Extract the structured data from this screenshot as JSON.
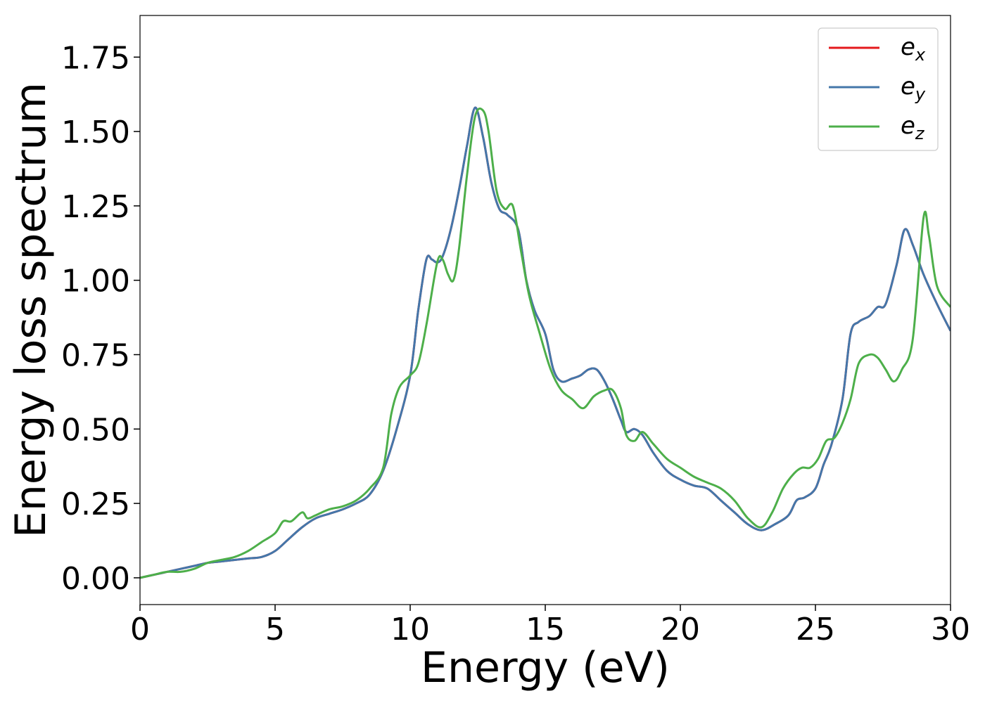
{
  "chart_data": {
    "type": "line",
    "title": "",
    "xlabel": "Energy (eV)",
    "ylabel": "Energy loss spectrum",
    "xlim": [
      0,
      30
    ],
    "ylim": [
      -0.09,
      1.89
    ],
    "xticks": [
      0,
      5,
      10,
      15,
      20,
      25,
      30
    ],
    "xtick_labels": [
      "0",
      "5",
      "10",
      "15",
      "20",
      "25",
      "30"
    ],
    "yticks": [
      0.0,
      0.25,
      0.5,
      0.75,
      1.0,
      1.25,
      1.5,
      1.75
    ],
    "ytick_labels": [
      "0.00",
      "0.25",
      "0.50",
      "0.75",
      "1.00",
      "1.25",
      "1.50",
      "1.75"
    ],
    "grid": false,
    "legend_position": "top-right",
    "series": [
      {
        "name": "e",
        "subscript": "x",
        "color": "#e41a1c",
        "x": [
          0,
          0.5,
          1,
          1.5,
          2,
          2.5,
          3,
          3.5,
          4,
          4.5,
          5,
          5.5,
          6,
          6.5,
          7,
          7.5,
          8,
          8.5,
          9,
          9.5,
          10,
          10.3,
          10.6,
          10.8,
          11,
          11.2,
          11.5,
          11.8,
          12.1,
          12.4,
          12.7,
          13,
          13.3,
          13.6,
          14,
          14.3,
          14.6,
          15,
          15.3,
          15.6,
          16,
          16.3,
          16.6,
          16.9,
          17.2,
          17.5,
          17.8,
          18,
          18.3,
          18.6,
          19,
          19.5,
          20,
          20.5,
          21,
          21.5,
          22,
          22.5,
          23,
          23.5,
          24,
          24.3,
          24.6,
          25,
          25.3,
          25.6,
          26,
          26.3,
          26.6,
          27,
          27.3,
          27.6,
          28,
          28.3,
          28.6,
          29,
          29.5,
          30
        ],
        "y": [
          0,
          0.01,
          0.02,
          0.03,
          0.04,
          0.05,
          0.055,
          0.06,
          0.065,
          0.07,
          0.09,
          0.13,
          0.17,
          0.2,
          0.215,
          0.23,
          0.25,
          0.28,
          0.36,
          0.5,
          0.68,
          0.9,
          1.07,
          1.07,
          1.06,
          1.08,
          1.17,
          1.3,
          1.45,
          1.58,
          1.48,
          1.33,
          1.24,
          1.22,
          1.17,
          1.0,
          0.9,
          0.82,
          0.7,
          0.66,
          0.67,
          0.68,
          0.7,
          0.7,
          0.66,
          0.6,
          0.53,
          0.49,
          0.5,
          0.48,
          0.42,
          0.36,
          0.33,
          0.31,
          0.3,
          0.26,
          0.22,
          0.18,
          0.16,
          0.18,
          0.21,
          0.26,
          0.27,
          0.3,
          0.38,
          0.45,
          0.6,
          0.82,
          0.86,
          0.88,
          0.91,
          0.92,
          1.05,
          1.17,
          1.12,
          1.02,
          0.92,
          0.83
        ]
      },
      {
        "name": "e",
        "subscript": "y",
        "color": "#4477aa",
        "x": [
          0,
          0.5,
          1,
          1.5,
          2,
          2.5,
          3,
          3.5,
          4,
          4.5,
          5,
          5.5,
          6,
          6.5,
          7,
          7.5,
          8,
          8.5,
          9,
          9.5,
          10,
          10.3,
          10.6,
          10.8,
          11,
          11.2,
          11.5,
          11.8,
          12.1,
          12.4,
          12.7,
          13,
          13.3,
          13.6,
          14,
          14.3,
          14.6,
          15,
          15.3,
          15.6,
          16,
          16.3,
          16.6,
          16.9,
          17.2,
          17.5,
          17.8,
          18,
          18.3,
          18.6,
          19,
          19.5,
          20,
          20.5,
          21,
          21.5,
          22,
          22.5,
          23,
          23.5,
          24,
          24.3,
          24.6,
          25,
          25.3,
          25.6,
          26,
          26.3,
          26.6,
          27,
          27.3,
          27.6,
          28,
          28.3,
          28.6,
          29,
          29.5,
          30
        ],
        "y": [
          0,
          0.01,
          0.02,
          0.03,
          0.04,
          0.05,
          0.055,
          0.06,
          0.065,
          0.07,
          0.09,
          0.13,
          0.17,
          0.2,
          0.215,
          0.23,
          0.25,
          0.28,
          0.36,
          0.5,
          0.68,
          0.9,
          1.07,
          1.07,
          1.06,
          1.08,
          1.17,
          1.3,
          1.45,
          1.58,
          1.48,
          1.33,
          1.24,
          1.22,
          1.17,
          1.0,
          0.9,
          0.82,
          0.7,
          0.66,
          0.67,
          0.68,
          0.7,
          0.7,
          0.66,
          0.6,
          0.53,
          0.49,
          0.5,
          0.48,
          0.42,
          0.36,
          0.33,
          0.31,
          0.3,
          0.26,
          0.22,
          0.18,
          0.16,
          0.18,
          0.21,
          0.26,
          0.27,
          0.3,
          0.38,
          0.45,
          0.6,
          0.82,
          0.86,
          0.88,
          0.91,
          0.92,
          1.05,
          1.17,
          1.12,
          1.02,
          0.92,
          0.83
        ]
      },
      {
        "name": "e",
        "subscript": "z",
        "color": "#4daf4a",
        "x": [
          0,
          0.5,
          1,
          1.5,
          2,
          2.5,
          3,
          3.5,
          4,
          4.5,
          5,
          5.3,
          5.6,
          6,
          6.2,
          6.5,
          7,
          7.5,
          8,
          8.5,
          9,
          9.3,
          9.6,
          10,
          10.3,
          10.6,
          11,
          11.2,
          11.4,
          11.6,
          11.8,
          12.1,
          12.4,
          12.7,
          12.9,
          13.2,
          13.5,
          13.8,
          14.1,
          14.4,
          14.8,
          15.2,
          15.6,
          16,
          16.4,
          16.8,
          17.2,
          17.5,
          17.8,
          18,
          18.3,
          18.6,
          19,
          19.5,
          20,
          20.5,
          21,
          21.5,
          22,
          22.5,
          23,
          23.4,
          23.8,
          24.2,
          24.5,
          24.8,
          25.1,
          25.4,
          25.7,
          26,
          26.3,
          26.6,
          27,
          27.3,
          27.6,
          27.9,
          28.2,
          28.6,
          29,
          29.2,
          29.5,
          30
        ],
        "y": [
          0,
          0.01,
          0.02,
          0.02,
          0.03,
          0.05,
          0.06,
          0.07,
          0.09,
          0.12,
          0.15,
          0.19,
          0.19,
          0.22,
          0.2,
          0.21,
          0.23,
          0.24,
          0.26,
          0.3,
          0.37,
          0.55,
          0.64,
          0.68,
          0.72,
          0.85,
          1.06,
          1.07,
          1.02,
          1.0,
          1.1,
          1.35,
          1.55,
          1.57,
          1.5,
          1.3,
          1.24,
          1.25,
          1.1,
          0.95,
          0.82,
          0.7,
          0.63,
          0.6,
          0.57,
          0.61,
          0.63,
          0.63,
          0.57,
          0.48,
          0.46,
          0.49,
          0.45,
          0.4,
          0.37,
          0.34,
          0.32,
          0.3,
          0.26,
          0.2,
          0.17,
          0.22,
          0.3,
          0.35,
          0.37,
          0.37,
          0.4,
          0.46,
          0.47,
          0.52,
          0.6,
          0.72,
          0.75,
          0.74,
          0.7,
          0.66,
          0.7,
          0.8,
          1.21,
          1.15,
          0.98,
          0.91
        ]
      }
    ]
  }
}
